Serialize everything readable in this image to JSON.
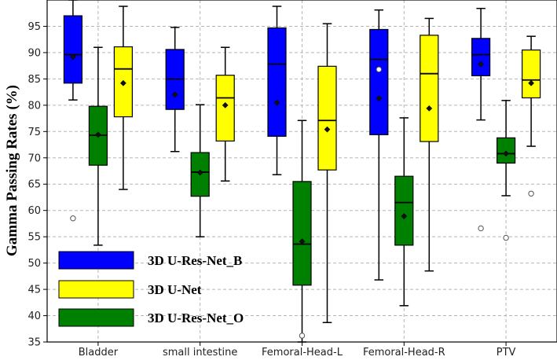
{
  "chart_data": {
    "type": "box",
    "title": "",
    "xlabel": "",
    "ylabel": "Gamma Passing Rates (%)",
    "ylim": [
      35,
      100
    ],
    "yticks": [
      35,
      40,
      45,
      50,
      55,
      60,
      65,
      70,
      75,
      80,
      85,
      90,
      95
    ],
    "grid": true,
    "legend_position": "bottom-left",
    "categories": [
      "Bladder",
      "small intestine",
      "Femoral-Head-L",
      "Femoral-Head-R",
      "PTV"
    ],
    "series": [
      {
        "name": "3D U-Res-Net_B",
        "color": "#0000ff",
        "boxes": [
          {
            "whisker_low": 81.0,
            "q1": 84.2,
            "median": 89.6,
            "q3": 97.0,
            "whisker_high": 100.0,
            "mean": 89.2,
            "outliers": [
              58.5
            ]
          },
          {
            "whisker_low": 71.2,
            "q1": 79.2,
            "median": 85.0,
            "q3": 90.6,
            "whisker_high": 94.8,
            "mean": 82.0,
            "outliers": []
          },
          {
            "whisker_low": 66.8,
            "q1": 74.1,
            "median": 87.8,
            "q3": 94.7,
            "whisker_high": 98.8,
            "mean": 80.5,
            "outliers": []
          },
          {
            "whisker_low": 46.8,
            "q1": 74.4,
            "median": 88.7,
            "q3": 94.4,
            "whisker_high": 98.1,
            "mean": 81.3,
            "outliers": [
              86.8
            ]
          },
          {
            "whisker_low": 77.2,
            "q1": 85.6,
            "median": 89.6,
            "q3": 92.7,
            "whisker_high": 98.4,
            "mean": 87.8,
            "outliers": [
              56.6
            ]
          }
        ]
      },
      {
        "name": "3D U-Res-Net_O",
        "color": "#008000",
        "boxes": [
          {
            "whisker_low": 53.4,
            "q1": 68.6,
            "median": 74.3,
            "q3": 79.8,
            "whisker_high": 91.0,
            "mean": 74.4,
            "outliers": []
          },
          {
            "whisker_low": 55.0,
            "q1": 62.7,
            "median": 67.3,
            "q3": 71.0,
            "whisker_high": 80.1,
            "mean": 67.2,
            "outliers": []
          },
          {
            "whisker_low": 35.0,
            "q1": 45.8,
            "median": 53.6,
            "q3": 65.5,
            "whisker_high": 77.1,
            "mean": 54.1,
            "outliers": [
              36.2
            ]
          },
          {
            "whisker_low": 41.9,
            "q1": 53.4,
            "median": 61.5,
            "q3": 66.5,
            "whisker_high": 77.6,
            "mean": 58.9,
            "outliers": []
          },
          {
            "whisker_low": 62.8,
            "q1": 69.0,
            "median": 70.8,
            "q3": 73.8,
            "whisker_high": 80.9,
            "mean": 70.8,
            "outliers": [
              54.8
            ]
          }
        ]
      },
      {
        "name": "3D U-Net",
        "color": "#ffff00",
        "boxes": [
          {
            "whisker_low": 64.0,
            "q1": 77.8,
            "median": 86.9,
            "q3": 91.1,
            "whisker_high": 98.8,
            "mean": 84.2,
            "outliers": []
          },
          {
            "whisker_low": 65.6,
            "q1": 73.2,
            "median": 81.4,
            "q3": 85.7,
            "whisker_high": 91.0,
            "mean": 80.0,
            "outliers": []
          },
          {
            "whisker_low": 38.7,
            "q1": 67.7,
            "median": 77.1,
            "q3": 87.4,
            "whisker_high": 95.5,
            "mean": 75.4,
            "outliers": []
          },
          {
            "whisker_low": 48.5,
            "q1": 73.1,
            "median": 86.0,
            "q3": 93.3,
            "whisker_high": 96.5,
            "mean": 79.4,
            "outliers": []
          },
          {
            "whisker_low": 72.2,
            "q1": 81.4,
            "median": 84.8,
            "q3": 90.5,
            "whisker_high": 93.1,
            "mean": 84.2,
            "outliers": [
              63.2
            ]
          }
        ]
      }
    ],
    "legend": [
      {
        "label": "3D U-Res-Net_B",
        "color": "#0000ff"
      },
      {
        "label": "3D U-Net",
        "color": "#ffff00"
      },
      {
        "label": "3D U-Res-Net_O",
        "color": "#008000"
      }
    ]
  }
}
